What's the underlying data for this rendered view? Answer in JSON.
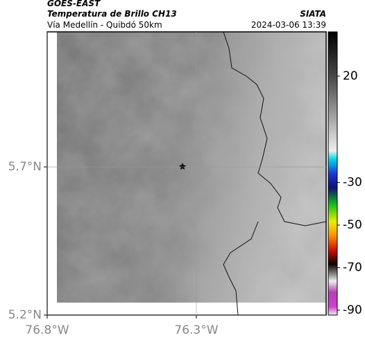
{
  "header": {
    "title": "GOES-EAST",
    "subtitle": "Temperatura de Brillo CH13",
    "location": "Vía Medellín - Quibdó 50km",
    "source": "SIATA",
    "datetime": "2024-03-06 13:39"
  },
  "map": {
    "xlim": [
      -76.8,
      -75.865
    ],
    "ylim": [
      5.2,
      6.156
    ],
    "xticks": [
      {
        "value": -76.8,
        "label": "76.8°W"
      },
      {
        "value": -76.3,
        "label": "76.3°W"
      }
    ],
    "yticks": [
      {
        "value": 5.7,
        "label": "5.7°N"
      },
      {
        "value": 5.2,
        "label": "5.2°N"
      }
    ],
    "grid": true
  },
  "colorbar": {
    "clim": [
      -92.3,
      40.8
    ],
    "ticks": [
      20,
      -30,
      -50,
      -70,
      -90
    ]
  }
}
